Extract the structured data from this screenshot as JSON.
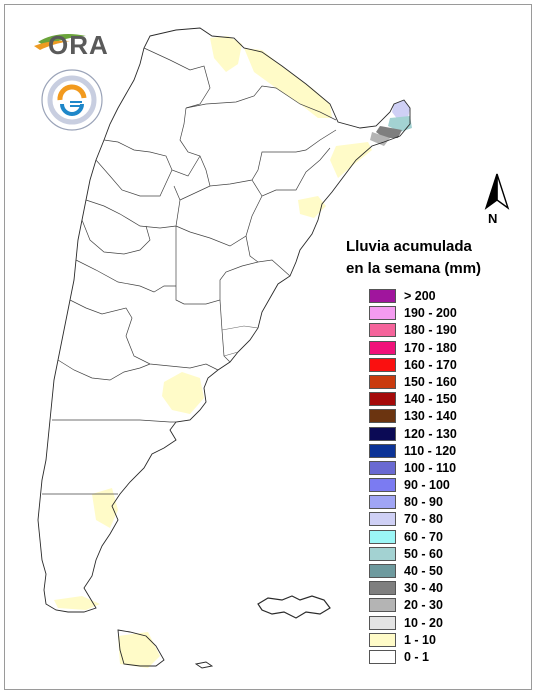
{
  "branding": {
    "ora_text": "ORA",
    "ora_logo_icon": "ora-leaf-logo",
    "smn_logo_icon": "smn-circular-seal"
  },
  "north_arrow": {
    "label": "N",
    "icon": "north-arrow-icon"
  },
  "legend": {
    "title_line1": "Lluvia acumulada",
    "title_line2": "en la semana (mm)",
    "items": [
      {
        "label": "> 200",
        "color": "#a0159d"
      },
      {
        "label": "190 - 200",
        "color": "#f49bf0"
      },
      {
        "label": "180 - 190",
        "color": "#f5649b"
      },
      {
        "label": "170 - 180",
        "color": "#f0127a"
      },
      {
        "label": "160 - 170",
        "color": "#fa1010"
      },
      {
        "label": "150 - 160",
        "color": "#c93a0e"
      },
      {
        "label": "140 - 150",
        "color": "#a50a0a"
      },
      {
        "label": "130 - 140",
        "color": "#6b3410"
      },
      {
        "label": "120 - 130",
        "color": "#0b0a55"
      },
      {
        "label": "110 - 120",
        "color": "#0c3396"
      },
      {
        "label": "100 - 110",
        "color": "#6a6ad2"
      },
      {
        "label": "90 - 100",
        "color": "#7b7bf2"
      },
      {
        "label": "80 - 90",
        "color": "#a0a5f5"
      },
      {
        "label": "70 - 80",
        "color": "#cfd0f5"
      },
      {
        "label": "60 - 70",
        "color": "#9bf6f6"
      },
      {
        "label": "50 - 60",
        "color": "#a3d2d2"
      },
      {
        "label": "40 - 50",
        "color": "#6e9a9e"
      },
      {
        "label": "30 - 40",
        "color": "#7f7f7f"
      },
      {
        "label": "20 - 30",
        "color": "#b4b4b4"
      },
      {
        "label": "10 - 20",
        "color": "#e4e4e4"
      },
      {
        "label": "1 - 10",
        "color": "#fffbc8"
      },
      {
        "label": "0 - 1",
        "color": "#ffffff"
      }
    ]
  },
  "map": {
    "region": "Argentina",
    "variable": "weekly accumulated rainfall",
    "rain_areas": [
      {
        "area": "north-jujuy-salta-border",
        "class": "1 - 10"
      },
      {
        "area": "formosa-chaco-strip",
        "class": "1 - 10"
      },
      {
        "area": "misiones-north-tip",
        "class": "70 - 80"
      },
      {
        "area": "misiones-mid",
        "class": "50 - 60"
      },
      {
        "area": "misiones-south",
        "class": "30 - 40"
      },
      {
        "area": "corrientes-east",
        "class": "1 - 10"
      },
      {
        "area": "entre-rios",
        "class": "1 - 10"
      },
      {
        "area": "buenos-aires-sw-coast",
        "class": "1 - 10"
      },
      {
        "area": "chubut-south-coast",
        "class": "1 - 10"
      },
      {
        "area": "santa-cruz-south",
        "class": "1 - 10"
      },
      {
        "area": "tierra-del-fuego",
        "class": "1 - 10"
      }
    ]
  }
}
